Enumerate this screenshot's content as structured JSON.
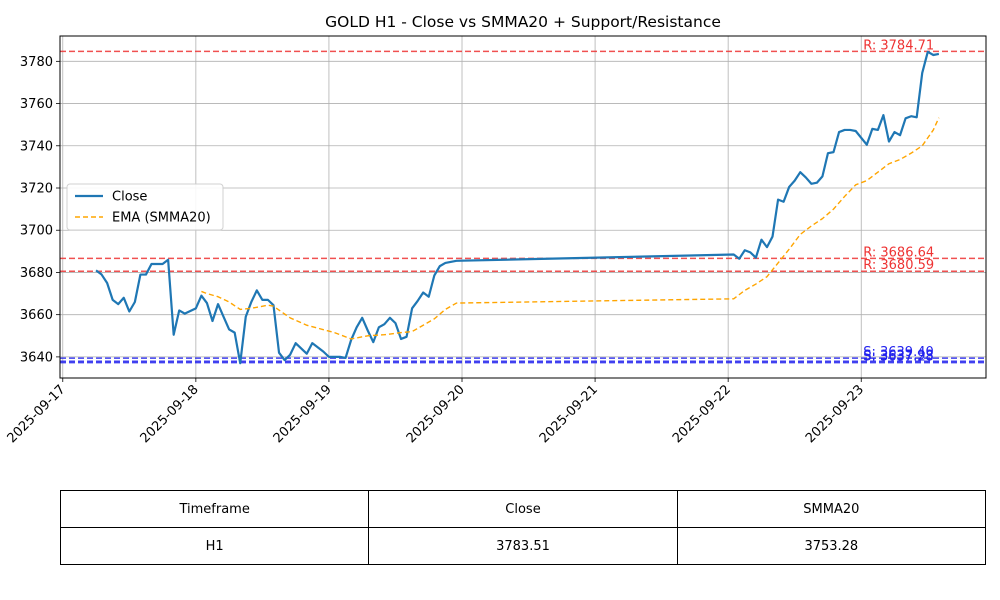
{
  "chart_data": {
    "type": "line",
    "title": "GOLD H1 - Close vs SMMA20 + Support/Resistance",
    "xlabel": "",
    "ylabel": "",
    "x_tick_labels": [
      "2025-09-17",
      "2025-09-18",
      "2025-09-19",
      "2025-09-20",
      "2025-09-21",
      "2025-09-22",
      "2025-09-23"
    ],
    "y_ticks": [
      3640,
      3660,
      3680,
      3700,
      3720,
      3740,
      3760,
      3780
    ],
    "ylim": [
      3630,
      3792
    ],
    "xlim": [
      "2025-09-16 23:30",
      "2025-09-23 22:30"
    ],
    "grid": true,
    "legend_position": "center-left",
    "series": [
      {
        "name": "Close",
        "color": "#1f77b4",
        "style": "solid",
        "points": [
          [
            "2025-09-17 06:00",
            3681
          ],
          [
            "2025-09-17 07:00",
            3679
          ],
          [
            "2025-09-17 08:00",
            3675
          ],
          [
            "2025-09-17 09:00",
            3667
          ],
          [
            "2025-09-17 10:00",
            3665
          ],
          [
            "2025-09-17 11:00",
            3668
          ],
          [
            "2025-09-17 12:00",
            3661.5
          ],
          [
            "2025-09-17 13:00",
            3666
          ],
          [
            "2025-09-17 14:00",
            3679
          ],
          [
            "2025-09-17 15:00",
            3679
          ],
          [
            "2025-09-17 16:00",
            3684
          ],
          [
            "2025-09-17 17:00",
            3684
          ],
          [
            "2025-09-17 18:00",
            3684
          ],
          [
            "2025-09-17 19:00",
            3686
          ],
          [
            "2025-09-17 20:00",
            3650.5
          ],
          [
            "2025-09-17 21:00",
            3662
          ],
          [
            "2025-09-17 22:00",
            3660.5
          ],
          [
            "2025-09-18 00:00",
            3663
          ],
          [
            "2025-09-18 01:00",
            3669
          ],
          [
            "2025-09-18 02:00",
            3665.5
          ],
          [
            "2025-09-18 03:00",
            3657
          ],
          [
            "2025-09-18 04:00",
            3665
          ],
          [
            "2025-09-18 05:00",
            3659
          ],
          [
            "2025-09-18 06:00",
            3653
          ],
          [
            "2025-09-18 07:00",
            3651.5
          ],
          [
            "2025-09-18 08:00",
            3637
          ],
          [
            "2025-09-18 09:00",
            3659
          ],
          [
            "2025-09-18 10:00",
            3666
          ],
          [
            "2025-09-18 11:00",
            3671.5
          ],
          [
            "2025-09-18 12:00",
            3667
          ],
          [
            "2025-09-18 13:00",
            3667
          ],
          [
            "2025-09-18 14:00",
            3664.5
          ],
          [
            "2025-09-18 15:00",
            3642
          ],
          [
            "2025-09-18 16:00",
            3638.5
          ],
          [
            "2025-09-18 17:00",
            3641
          ],
          [
            "2025-09-18 18:00",
            3646.5
          ],
          [
            "2025-09-18 19:00",
            3644
          ],
          [
            "2025-09-18 20:00",
            3641.5
          ],
          [
            "2025-09-18 21:00",
            3646.5
          ],
          [
            "2025-09-18 23:00",
            3642.5
          ],
          [
            "2025-09-19 00:00",
            3640
          ],
          [
            "2025-09-19 02:00",
            3640
          ],
          [
            "2025-09-19 03:00",
            3639.5
          ],
          [
            "2025-09-19 04:00",
            3648
          ],
          [
            "2025-09-19 05:00",
            3654
          ],
          [
            "2025-09-19 06:00",
            3658.5
          ],
          [
            "2025-09-19 07:00",
            3652.5
          ],
          [
            "2025-09-19 08:00",
            3647
          ],
          [
            "2025-09-19 09:00",
            3654
          ],
          [
            "2025-09-19 10:00",
            3655.5
          ],
          [
            "2025-09-19 11:00",
            3658.5
          ],
          [
            "2025-09-19 12:00",
            3656
          ],
          [
            "2025-09-19 13:00",
            3648.5
          ],
          [
            "2025-09-19 14:00",
            3649.5
          ],
          [
            "2025-09-19 15:00",
            3663
          ],
          [
            "2025-09-19 16:00",
            3666.5
          ],
          [
            "2025-09-19 17:00",
            3670.5
          ],
          [
            "2025-09-19 18:00",
            3668.5
          ],
          [
            "2025-09-19 19:00",
            3678.5
          ],
          [
            "2025-09-19 20:00",
            3683
          ],
          [
            "2025-09-19 21:00",
            3684.5
          ],
          [
            "2025-09-19 23:00",
            3685.5
          ],
          [
            "2025-09-22 01:00",
            3688.5
          ],
          [
            "2025-09-22 02:00",
            3686.5
          ],
          [
            "2025-09-22 03:00",
            3690.5
          ],
          [
            "2025-09-22 04:00",
            3689.5
          ],
          [
            "2025-09-22 05:00",
            3687
          ],
          [
            "2025-09-22 06:00",
            3695.5
          ],
          [
            "2025-09-22 07:00",
            3692
          ],
          [
            "2025-09-22 08:00",
            3697
          ],
          [
            "2025-09-22 09:00",
            3714.5
          ],
          [
            "2025-09-22 10:00",
            3713.5
          ],
          [
            "2025-09-22 11:00",
            3720.5
          ],
          [
            "2025-09-22 12:00",
            3723.5
          ],
          [
            "2025-09-22 13:00",
            3727.5
          ],
          [
            "2025-09-22 14:00",
            3725
          ],
          [
            "2025-09-22 15:00",
            3722
          ],
          [
            "2025-09-22 16:00",
            3722.5
          ],
          [
            "2025-09-22 17:00",
            3725.5
          ],
          [
            "2025-09-22 18:00",
            3736.5
          ],
          [
            "2025-09-22 19:00",
            3737
          ],
          [
            "2025-09-22 20:00",
            3746.5
          ],
          [
            "2025-09-22 21:00",
            3747.5
          ],
          [
            "2025-09-22 22:00",
            3747.5
          ],
          [
            "2025-09-22 23:00",
            3747
          ],
          [
            "2025-09-23 01:00",
            3740.5
          ],
          [
            "2025-09-23 02:00",
            3748
          ],
          [
            "2025-09-23 03:00",
            3747.5
          ],
          [
            "2025-09-23 04:00",
            3754.5
          ],
          [
            "2025-09-23 05:00",
            3742
          ],
          [
            "2025-09-23 06:00",
            3746.5
          ],
          [
            "2025-09-23 07:00",
            3745
          ],
          [
            "2025-09-23 08:00",
            3753
          ],
          [
            "2025-09-23 09:00",
            3754
          ],
          [
            "2025-09-23 10:00",
            3753.5
          ],
          [
            "2025-09-23 11:00",
            3774.5
          ],
          [
            "2025-09-23 12:00",
            3784.5
          ],
          [
            "2025-09-23 13:00",
            3783
          ],
          [
            "2025-09-23 14:00",
            3783.51
          ]
        ]
      },
      {
        "name": "EMA (SMMA20)",
        "color": "#ffa500",
        "style": "dashed",
        "points": [
          [
            "2025-09-18 01:00",
            3671
          ],
          [
            "2025-09-18 02:00",
            3670
          ],
          [
            "2025-09-18 04:00",
            3668.5
          ],
          [
            "2025-09-18 06:00",
            3666
          ],
          [
            "2025-09-18 08:00",
            3662.5
          ],
          [
            "2025-09-18 10:00",
            3663
          ],
          [
            "2025-09-18 13:00",
            3664.5
          ],
          [
            "2025-09-18 14:00",
            3664
          ],
          [
            "2025-09-18 17:00",
            3658.5
          ],
          [
            "2025-09-18 20:00",
            3655
          ],
          [
            "2025-09-19 01:00",
            3651.5
          ],
          [
            "2025-09-19 04:00",
            3648.5
          ],
          [
            "2025-09-19 07:00",
            3650
          ],
          [
            "2025-09-19 10:00",
            3650.5
          ],
          [
            "2025-09-19 13:00",
            3651.5
          ],
          [
            "2025-09-19 15:00",
            3652
          ],
          [
            "2025-09-19 17:00",
            3655
          ],
          [
            "2025-09-19 19:00",
            3658
          ],
          [
            "2025-09-19 21:00",
            3662.5
          ],
          [
            "2025-09-19 23:00",
            3665.5
          ],
          [
            "2025-09-22 01:00",
            3667.5
          ],
          [
            "2025-09-22 03:00",
            3671.5
          ],
          [
            "2025-09-22 05:00",
            3674.5
          ],
          [
            "2025-09-22 07:00",
            3678
          ],
          [
            "2025-09-22 09:00",
            3684.5
          ],
          [
            "2025-09-22 11:00",
            3691
          ],
          [
            "2025-09-22 13:00",
            3698
          ],
          [
            "2025-09-22 15:00",
            3702
          ],
          [
            "2025-09-22 17:00",
            3705.5
          ],
          [
            "2025-09-22 19:00",
            3710
          ],
          [
            "2025-09-22 21:00",
            3716
          ],
          [
            "2025-09-22 23:00",
            3721.5
          ],
          [
            "2025-09-23 01:00",
            3723.5
          ],
          [
            "2025-09-23 03:00",
            3727.5
          ],
          [
            "2025-09-23 05:00",
            3731.5
          ],
          [
            "2025-09-23 07:00",
            3733.5
          ],
          [
            "2025-09-23 09:00",
            3736.5
          ],
          [
            "2025-09-23 11:00",
            3740
          ],
          [
            "2025-09-23 13:00",
            3747.5
          ],
          [
            "2025-09-23 14:00",
            3753.28
          ]
        ]
      }
    ],
    "levels": [
      {
        "kind": "resistance",
        "value": 3784.71,
        "label": "R: 3784.71",
        "color": "#ee3333"
      },
      {
        "kind": "resistance",
        "value": 3686.64,
        "label": "R: 3686.64",
        "color": "#ee3333"
      },
      {
        "kind": "resistance",
        "value": 3680.59,
        "label": "R: 3680.59",
        "color": "#ee3333"
      },
      {
        "kind": "support",
        "value": 3639.4,
        "label": "S: 3639.40",
        "color": "#2222ee"
      },
      {
        "kind": "support",
        "value": 3637.93,
        "label": "S: 3637.93",
        "color": "#2222ee"
      },
      {
        "kind": "support",
        "value": 3637.28,
        "label": "S: 3637.28",
        "color": "#2222ee"
      }
    ]
  },
  "table": {
    "headers": [
      "Timeframe",
      "Close",
      "SMMA20"
    ],
    "rows": [
      [
        "H1",
        "3783.51",
        "3753.28"
      ]
    ]
  }
}
